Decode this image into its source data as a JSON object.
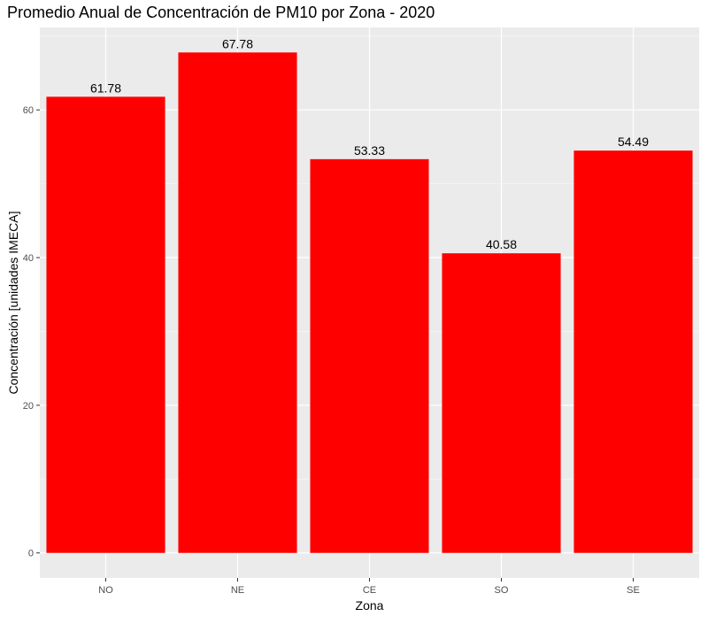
{
  "chart_data": {
    "type": "bar",
    "title": "Promedio Anual de Concentración de PM10 por Zona - 2020",
    "xlabel": "Zona",
    "ylabel": "Concentración [unidades IMECA]",
    "categories": [
      "NO",
      "NE",
      "CE",
      "SO",
      "SE"
    ],
    "values": [
      61.78,
      67.78,
      53.33,
      40.58,
      54.49
    ],
    "value_labels": [
      "61.78",
      "67.78",
      "53.33",
      "40.58",
      "54.49"
    ],
    "yticks": [
      0,
      20,
      40,
      60
    ],
    "ytick_labels": [
      "0",
      "20",
      "40",
      "60"
    ],
    "ylim": [
      -3.39,
      71.17
    ],
    "grid": true,
    "legend": "none",
    "colors": {
      "bar": "#ff0000",
      "panel_background": "#ebebeb",
      "grid_major": "#ffffff",
      "grid_minor": "#f5f5f5",
      "axis_text": "#4d4d4d",
      "text": "#000000"
    }
  }
}
